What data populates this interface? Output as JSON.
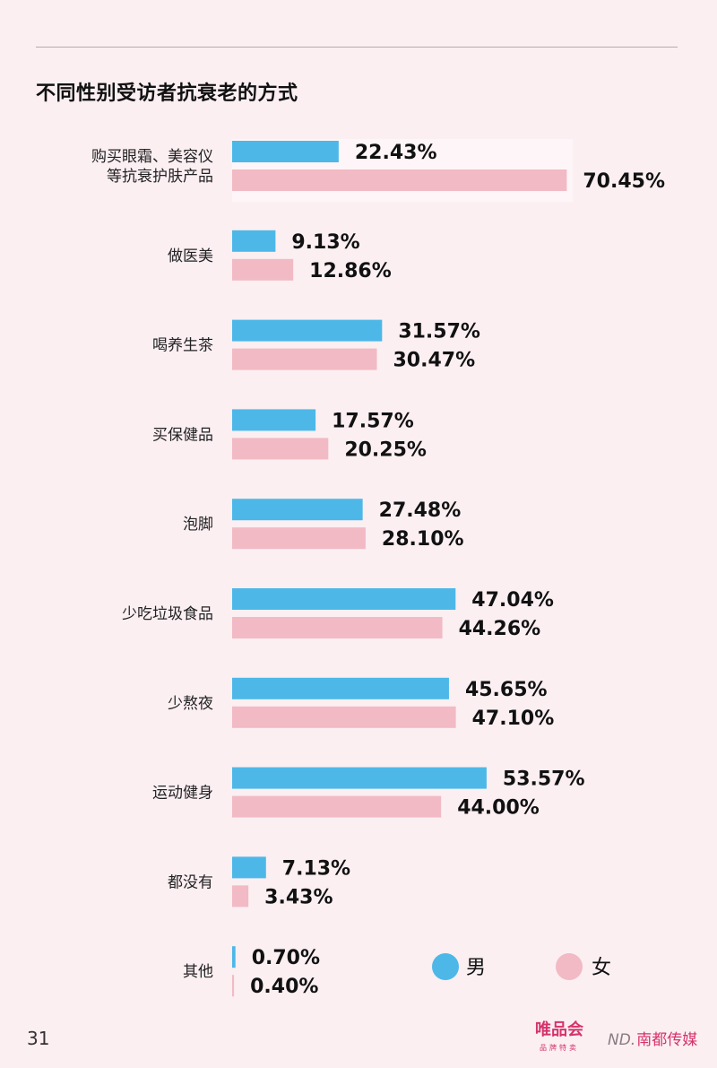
{
  "title": "不同性别受访者抗衰老的方式",
  "page_number": "31",
  "logos": {
    "vip_main": "唯品会",
    "vip_sub": "品牌特卖",
    "nd_mark": "ND.",
    "nd_name": "南都传媒"
  },
  "colors": {
    "male": "#4db8e8",
    "female": "#f2bac4",
    "background": "#fbeff2"
  },
  "chart_data": {
    "type": "bar",
    "orientation": "horizontal",
    "categories": [
      "购买眼霜、美容仪\n等抗衰护肤产品",
      "做医美",
      "喝养生茶",
      "买保健品",
      "泡脚",
      "少吃垃圾食品",
      "少熬夜",
      "运动健身",
      "都没有",
      "其他"
    ],
    "series": [
      {
        "name": "男",
        "color": "#4db8e8",
        "values": [
          22.43,
          9.13,
          31.57,
          17.57,
          27.48,
          47.04,
          45.65,
          53.57,
          7.13,
          0.7
        ],
        "labels": [
          "22.43%",
          "9.13%",
          "31.57%",
          "17.57%",
          "27.48%",
          "47.04%",
          "45.65%",
          "53.57%",
          "7.13%",
          "0.70%"
        ]
      },
      {
        "name": "女",
        "color": "#f2bac4",
        "values": [
          70.45,
          12.86,
          30.47,
          20.25,
          28.1,
          44.26,
          47.1,
          44.0,
          3.43,
          0.4
        ],
        "labels": [
          "70.45%",
          "12.86%",
          "30.47%",
          "20.25%",
          "28.10%",
          "44.26%",
          "47.10%",
          "44.00%",
          "3.43%",
          "0.40%"
        ]
      }
    ],
    "grid": false,
    "legend": "bottom-right"
  }
}
